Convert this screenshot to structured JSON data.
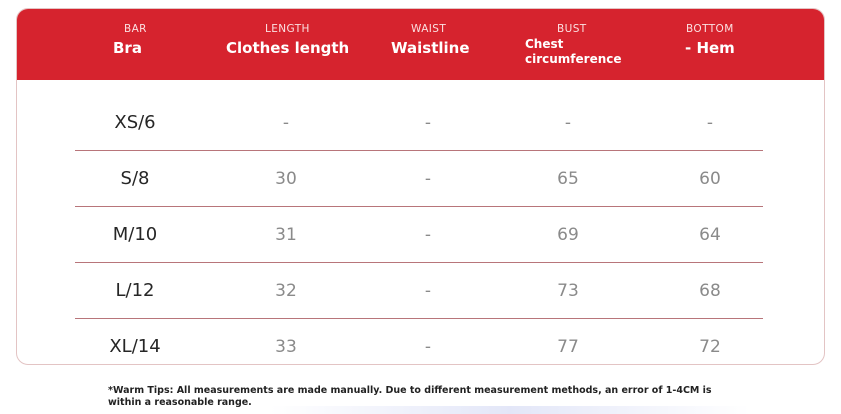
{
  "header": {
    "columns": [
      {
        "small": "BAR",
        "big": "Bra"
      },
      {
        "small": "LENGTH",
        "big": "Clothes length"
      },
      {
        "small": "WAIST",
        "big": "Waistline"
      },
      {
        "small": "BUST",
        "big": "Chest circumference"
      },
      {
        "small": "BOTTOM",
        "big": "- Hem"
      }
    ]
  },
  "rows": [
    {
      "size": "XS/6",
      "length": "-",
      "waist": "-",
      "bust": "-",
      "bottom": "-"
    },
    {
      "size": "S/8",
      "length": "30",
      "waist": "-",
      "bust": "65",
      "bottom": "60"
    },
    {
      "size": "M/10",
      "length": "31",
      "waist": "-",
      "bust": "69",
      "bottom": "64"
    },
    {
      "size": "L/12",
      "length": "32",
      "waist": "-",
      "bust": "73",
      "bottom": "68"
    },
    {
      "size": "XL/14",
      "length": "33",
      "waist": "-",
      "bust": "77",
      "bottom": "72"
    }
  ],
  "tip": "*Warm Tips: All measurements are made manually. Due to different measurement methods, an error of 1-4CM is within a reasonable range.",
  "colors": {
    "header_bg": "#d6232e",
    "divider": "#b8757a",
    "value_text": "#8a8a8a"
  }
}
